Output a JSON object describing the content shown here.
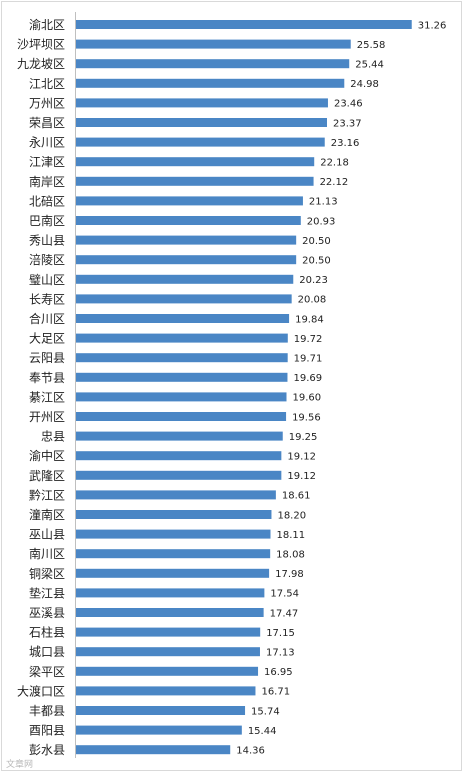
{
  "chart_data": {
    "type": "bar",
    "orientation": "horizontal",
    "title": "",
    "xlabel": "",
    "ylabel": "",
    "grid": false,
    "legend": "none",
    "xlim": [
      0,
      32
    ],
    "bar_color": "#4a86c5",
    "categories": [
      "渝北区",
      "沙坪坝区",
      "九龙坡区",
      "江北区",
      "万州区",
      "荣昌区",
      "永川区",
      "江津区",
      "南岸区",
      "北碚区",
      "巴南区",
      "秀山县",
      "涪陵区",
      "璧山区",
      "长寿区",
      "合川区",
      "大足区",
      "云阳县",
      "奉节县",
      "綦江区",
      "开州区",
      "忠县",
      "渝中区",
      "武隆区",
      "黔江区",
      "潼南区",
      "巫山县",
      "南川区",
      "铜梁区",
      "垫江县",
      "巫溪县",
      "石柱县",
      "城口县",
      "梁平区",
      "大渡口区",
      "丰都县",
      "酉阳县",
      "彭水县"
    ],
    "values": [
      31.26,
      25.58,
      25.44,
      24.98,
      23.46,
      23.37,
      23.16,
      22.18,
      22.12,
      21.13,
      20.93,
      20.5,
      20.5,
      20.23,
      20.08,
      19.84,
      19.72,
      19.71,
      19.69,
      19.6,
      19.56,
      19.25,
      19.12,
      19.12,
      18.61,
      18.2,
      18.11,
      18.08,
      17.98,
      17.54,
      17.47,
      17.15,
      17.13,
      16.95,
      16.71,
      15.74,
      15.44,
      14.36
    ],
    "value_labels": [
      "31.26",
      "25.58",
      "25.44",
      "24.98",
      "23.46",
      "23.37",
      "23.16",
      "22.18",
      "22.12",
      "21.13",
      "20.93",
      "20.50",
      "20.50",
      "20.23",
      "20.08",
      "19.84",
      "19.72",
      "19.71",
      "19.69",
      "19.60",
      "19.56",
      "19.25",
      "19.12",
      "19.12",
      "18.61",
      "18.20",
      "18.11",
      "18.08",
      "17.98",
      "17.54",
      "17.47",
      "17.15",
      "17.13",
      "16.95",
      "16.71",
      "15.74",
      "15.44",
      "14.36"
    ]
  },
  "watermark": "文章网"
}
